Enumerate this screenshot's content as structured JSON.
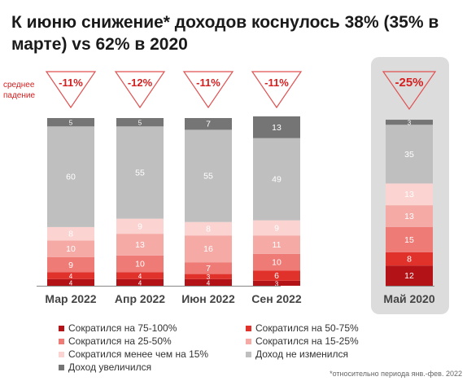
{
  "title": "К июню снижение* доходов коснулось 38% (35% в марте) vs 62% в 2020",
  "avg_label": "среднее падение",
  "footnote": "*относительно периода янв.-фев. 2022",
  "colors": {
    "s75_100": "#b31217",
    "s50_75": "#e0312b",
    "s25_50": "#ef7b76",
    "s15_25": "#f5aaa6",
    "s_less15": "#fbd3d1",
    "unchanged": "#bfbfbf",
    "increased": "#757575",
    "triangle": "#e05050",
    "highlight": "#dcdcdc"
  },
  "chart_data": {
    "type": "bar",
    "stacked": true,
    "categories": [
      "Мар 2022",
      "Апр 2022",
      "Июн 2022",
      "Сен 2022",
      "Май 2020"
    ],
    "average_decline": [
      "-11%",
      "-12%",
      "-11%",
      "-11%",
      "-25%"
    ],
    "highlighted_category": "Май 2020",
    "series": [
      {
        "name": "Сократился на 75-100%",
        "color_key": "s75_100",
        "values": [
          4,
          4,
          4,
          3,
          12
        ]
      },
      {
        "name": "Сократился на 50-75%",
        "color_key": "s50_75",
        "values": [
          4,
          4,
          3,
          6,
          8
        ]
      },
      {
        "name": "Сократился на 25-50%",
        "color_key": "s25_50",
        "values": [
          9,
          10,
          7,
          10,
          15
        ]
      },
      {
        "name": "Сократился на 15-25%",
        "color_key": "s15_25",
        "values": [
          10,
          13,
          16,
          11,
          13
        ]
      },
      {
        "name": "Сократился менее чем на 15%",
        "color_key": "s_less15",
        "values": [
          8,
          9,
          8,
          9,
          13
        ]
      },
      {
        "name": "Доход не изменился",
        "color_key": "unchanged",
        "values": [
          60,
          55,
          55,
          49,
          35
        ]
      },
      {
        "name": "Доход увеличился",
        "color_key": "increased",
        "values": [
          5,
          5,
          7,
          13,
          3
        ]
      }
    ],
    "legend_position": "bottom"
  }
}
